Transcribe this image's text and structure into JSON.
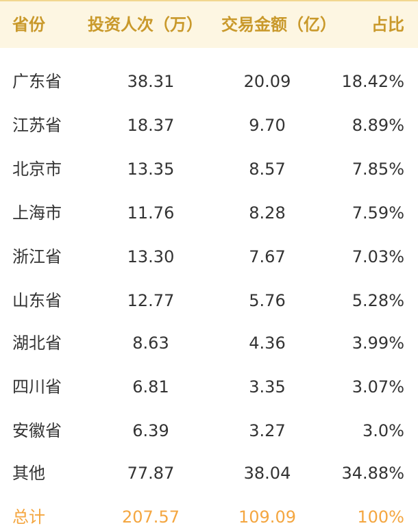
{
  "header": {
    "province": "省份",
    "investors": "投资人次（万）",
    "amount": "交易金额（亿）",
    "ratio": "占比"
  },
  "rows": [
    {
      "province": "广东省",
      "investors": "38.31",
      "amount": "20.09",
      "ratio": "18.42%"
    },
    {
      "province": "江苏省",
      "investors": "18.37",
      "amount": "9.70",
      "ratio": "8.89%"
    },
    {
      "province": "北京市",
      "investors": "13.35",
      "amount": "8.57",
      "ratio": "7.85%"
    },
    {
      "province": "上海市",
      "investors": "11.76",
      "amount": "8.28",
      "ratio": "7.59%"
    },
    {
      "province": "浙江省",
      "investors": "13.30",
      "amount": "7.67",
      "ratio": "7.03%"
    },
    {
      "province": "山东省",
      "investors": "12.77",
      "amount": "5.76",
      "ratio": "5.28%"
    },
    {
      "province": "湖北省",
      "investors": "8.63",
      "amount": "4.36",
      "ratio": "3.99%"
    },
    {
      "province": "四川省",
      "investors": "6.81",
      "amount": "3.35",
      "ratio": "3.07%"
    },
    {
      "province": "安徽省",
      "investors": "6.39",
      "amount": "3.27",
      "ratio": "3.0%"
    },
    {
      "province": "其他",
      "investors": "77.87",
      "amount": "38.04",
      "ratio": "34.88%"
    }
  ],
  "total": {
    "label": "总计",
    "investors": "207.57",
    "amount": "109.09",
    "ratio": "100%"
  },
  "colors": {
    "header_bg": "#fdf6e2",
    "header_text": "#c9992b",
    "body_text": "#333333",
    "total_text": "#f4a640"
  }
}
